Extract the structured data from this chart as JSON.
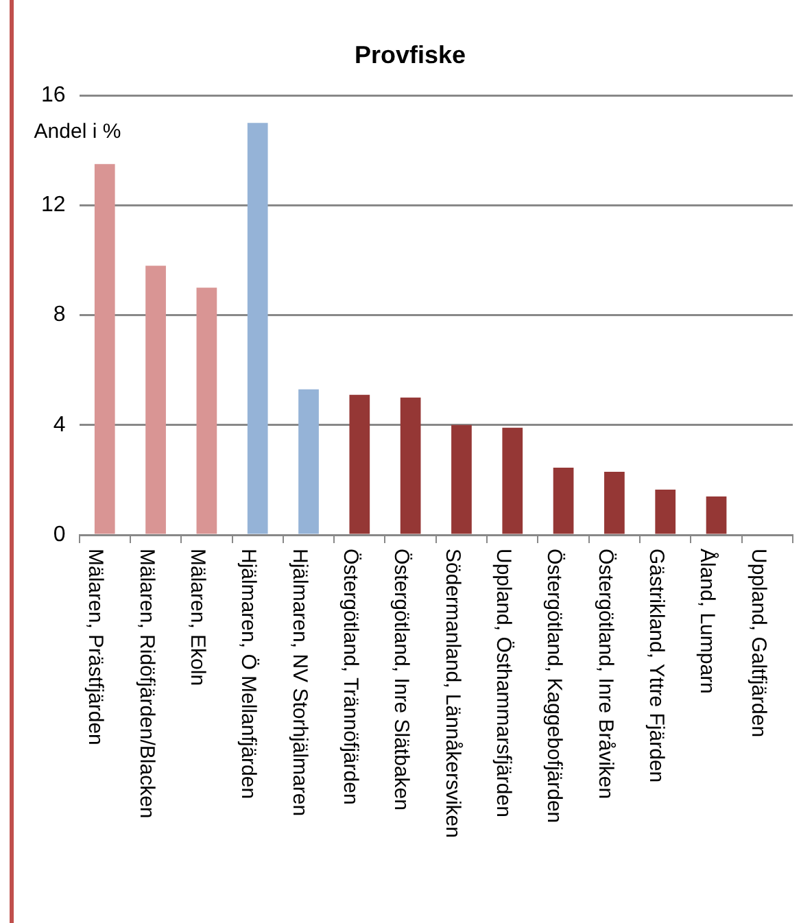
{
  "chart_data": {
    "type": "bar",
    "title": "Provfiske",
    "ylabel": "Andel i %",
    "categories": [
      "Mälaren, Prästfjärden",
      "Mälaren, Ridöfjärden/Blacken",
      "Mälaren, Ekoln",
      "Hjälmaren, Ö Mellanfjärden",
      "Hjälmaren, NV Storhjälmaren",
      "Östergötland, Trännöfjärden",
      "Östergötland, Inre Slätbaken",
      "Södermanland, Lännåkersviken",
      "Uppland, Östhammarsfjärden",
      "Östergötland, Kaggebofjärden",
      "Östergötland, Inre Bråviken",
      "Gästrikland, Yttre Fjärden",
      "Åland, Lumparn",
      "Uppland, Galtfjärden"
    ],
    "values": [
      13.5,
      9.8,
      9.0,
      15.0,
      5.3,
      5.1,
      5.0,
      4.0,
      3.9,
      2.45,
      2.3,
      1.65,
      1.4,
      0
    ],
    "colors": [
      "#d99594",
      "#d99594",
      "#d99594",
      "#95b3d7",
      "#95b3d7",
      "#953735",
      "#953735",
      "#953735",
      "#953735",
      "#953735",
      "#953735",
      "#953735",
      "#953735",
      "#953735"
    ],
    "ylim": [
      0,
      16
    ],
    "yticks": [
      0,
      4,
      8,
      12,
      16
    ],
    "grid": "y",
    "legend": false
  }
}
